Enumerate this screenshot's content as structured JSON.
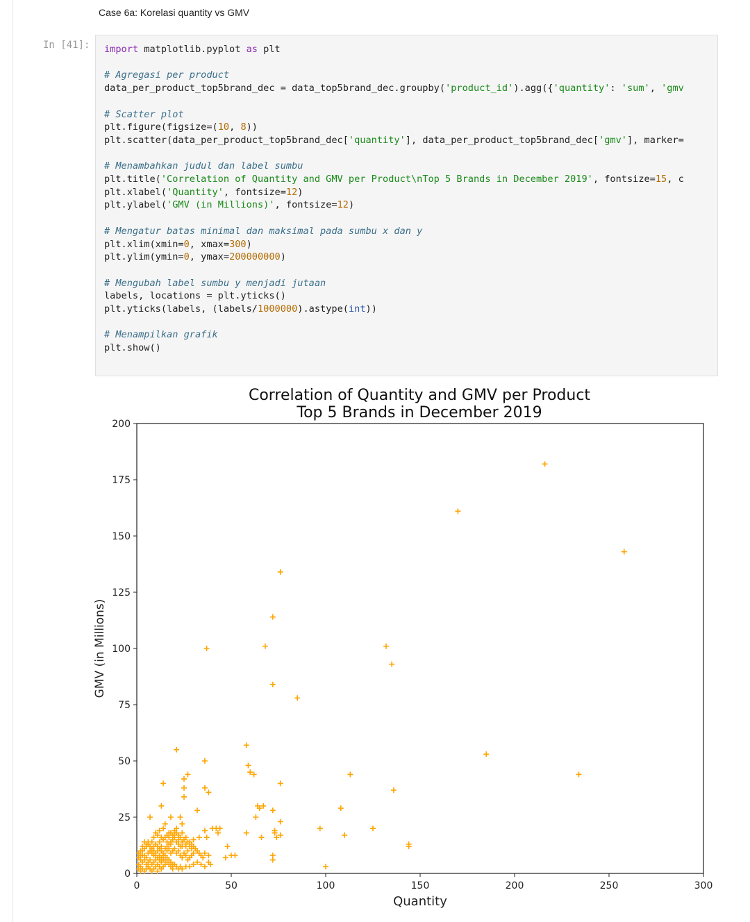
{
  "notebook": {
    "markdown_heading": "Case 6a: Korelasi quantity vs GMV",
    "cell_prompt": "In [41]:",
    "code_lines": [
      [
        [
          "kw",
          "import"
        ],
        [
          "t",
          " matplotlib.pyplot "
        ],
        [
          "kw",
          "as"
        ],
        [
          "t",
          " plt"
        ]
      ],
      [],
      [
        [
          "com",
          "# Agregasi per product"
        ]
      ],
      [
        [
          "t",
          "data_per_product_top5brand_dec = data_top5brand_dec.groupby("
        ],
        [
          "str",
          "'product_id'"
        ],
        [
          "t",
          ").agg({"
        ],
        [
          "str",
          "'quantity'"
        ],
        [
          "t",
          ": "
        ],
        [
          "str",
          "'sum'"
        ],
        [
          "t",
          ", "
        ],
        [
          "str",
          "'gmv"
        ]
      ],
      [],
      [
        [
          "com",
          "# Scatter plot"
        ]
      ],
      [
        [
          "t",
          "plt.figure(figsize=("
        ],
        [
          "num",
          "10"
        ],
        [
          "t",
          ", "
        ],
        [
          "num",
          "8"
        ],
        [
          "t",
          "))"
        ]
      ],
      [
        [
          "t",
          "plt.scatter(data_per_product_top5brand_dec["
        ],
        [
          "str",
          "'quantity'"
        ],
        [
          "t",
          "], data_per_product_top5brand_dec["
        ],
        [
          "str",
          "'gmv'"
        ],
        [
          "t",
          "], marker="
        ]
      ],
      [],
      [
        [
          "com",
          "# Menambahkan judul dan label sumbu"
        ]
      ],
      [
        [
          "t",
          "plt.title("
        ],
        [
          "str",
          "'Correlation of Quantity and GMV per Product\\nTop 5 Brands in December 2019'"
        ],
        [
          "t",
          ", fontsize="
        ],
        [
          "num",
          "15"
        ],
        [
          "t",
          ", c"
        ]
      ],
      [
        [
          "t",
          "plt.xlabel("
        ],
        [
          "str",
          "'Quantity'"
        ],
        [
          "t",
          ", fontsize="
        ],
        [
          "num",
          "12"
        ],
        [
          "t",
          ")"
        ]
      ],
      [
        [
          "t",
          "plt.ylabel("
        ],
        [
          "str",
          "'GMV (in Millions)'"
        ],
        [
          "t",
          ", fontsize="
        ],
        [
          "num",
          "12"
        ],
        [
          "t",
          ")"
        ]
      ],
      [],
      [
        [
          "com",
          "# Mengatur batas minimal dan maksimal pada sumbu x dan y"
        ]
      ],
      [
        [
          "t",
          "plt.xlim(xmin="
        ],
        [
          "num",
          "0"
        ],
        [
          "t",
          ", xmax="
        ],
        [
          "num",
          "300"
        ],
        [
          "t",
          ")"
        ]
      ],
      [
        [
          "t",
          "plt.ylim(ymin="
        ],
        [
          "num",
          "0"
        ],
        [
          "t",
          ", ymax="
        ],
        [
          "num",
          "200000000"
        ],
        [
          "t",
          ")"
        ]
      ],
      [],
      [
        [
          "com",
          "# Mengubah label sumbu y menjadi jutaan"
        ]
      ],
      [
        [
          "t",
          "labels, locations = plt.yticks()"
        ]
      ],
      [
        [
          "t",
          "plt.yticks(labels, (labels/"
        ],
        [
          "num",
          "1000000"
        ],
        [
          "t",
          ")."
        ],
        [
          "t",
          "astype("
        ],
        [
          "fn",
          "int"
        ],
        [
          "t",
          "))"
        ]
      ],
      [],
      [
        [
          "com",
          "# Menampilkan grafik"
        ]
      ],
      [
        [
          "t",
          "plt.show()"
        ]
      ]
    ]
  },
  "chart_data": {
    "type": "scatter",
    "title": "Correlation of Quantity and GMV per Product",
    "subtitle": "Top 5 Brands in December 2019",
    "xlabel": "Quantity",
    "ylabel": "GMV (in Millions)",
    "xlim": [
      0,
      300
    ],
    "ylim": [
      0,
      200
    ],
    "xticks": [
      0,
      50,
      100,
      150,
      200,
      250,
      300
    ],
    "yticks": [
      0,
      25,
      50,
      75,
      100,
      125,
      150,
      175,
      200
    ],
    "marker": "+",
    "color": "#FFA500",
    "grid": false,
    "series": [
      {
        "points": [
          [
            216,
            182
          ],
          [
            170,
            161
          ],
          [
            258,
            143
          ],
          [
            76,
            134
          ],
          [
            72,
            114
          ],
          [
            37,
            100
          ],
          [
            68,
            101
          ],
          [
            132,
            101
          ],
          [
            135,
            93
          ],
          [
            72,
            84
          ],
          [
            85,
            78
          ],
          [
            21,
            55
          ],
          [
            58,
            57
          ],
          [
            36,
            50
          ],
          [
            185,
            53
          ],
          [
            59,
            48
          ],
          [
            60,
            45
          ],
          [
            62,
            44
          ],
          [
            113,
            44
          ],
          [
            234,
            44
          ],
          [
            14,
            40
          ],
          [
            25,
            42
          ],
          [
            27,
            44
          ],
          [
            36,
            38
          ],
          [
            38,
            36
          ],
          [
            25,
            38
          ],
          [
            25,
            34
          ],
          [
            76,
            40
          ],
          [
            136,
            37
          ],
          [
            13,
            30
          ],
          [
            32,
            28
          ],
          [
            65,
            29
          ],
          [
            67,
            30
          ],
          [
            64,
            30
          ],
          [
            72,
            28
          ],
          [
            108,
            29
          ],
          [
            7,
            25
          ],
          [
            18,
            25
          ],
          [
            23,
            25
          ],
          [
            63,
            25
          ],
          [
            76,
            23
          ],
          [
            24,
            22
          ],
          [
            21,
            20
          ],
          [
            20,
            18
          ],
          [
            17,
            18
          ],
          [
            15,
            22
          ],
          [
            14,
            20
          ],
          [
            12,
            19
          ],
          [
            10,
            18
          ],
          [
            9,
            16
          ],
          [
            11,
            17
          ],
          [
            13,
            16
          ],
          [
            16,
            14
          ],
          [
            18,
            13
          ],
          [
            22,
            15
          ],
          [
            26,
            12
          ],
          [
            28,
            14
          ],
          [
            30,
            15
          ],
          [
            33,
            16
          ],
          [
            36,
            19
          ],
          [
            37,
            16
          ],
          [
            42,
            20
          ],
          [
            44,
            20
          ],
          [
            40,
            20
          ],
          [
            43,
            18
          ],
          [
            58,
            18
          ],
          [
            66,
            16
          ],
          [
            73,
            19
          ],
          [
            76,
            17
          ],
          [
            97,
            20
          ],
          [
            110,
            17
          ],
          [
            125,
            20
          ],
          [
            144,
            12
          ],
          [
            144,
            13
          ],
          [
            74,
            16
          ],
          [
            73,
            18
          ],
          [
            8,
            14
          ],
          [
            6,
            13
          ],
          [
            5,
            12
          ],
          [
            4,
            11
          ],
          [
            3,
            10
          ],
          [
            4,
            8
          ],
          [
            2,
            6
          ],
          [
            3,
            5
          ],
          [
            5,
            7
          ],
          [
            6,
            9
          ],
          [
            7,
            10
          ],
          [
            8,
            11
          ],
          [
            9,
            12
          ],
          [
            10,
            13
          ],
          [
            11,
            12
          ],
          [
            12,
            11
          ],
          [
            13,
            10
          ],
          [
            14,
            9
          ],
          [
            15,
            8
          ],
          [
            16,
            7
          ],
          [
            17,
            6
          ],
          [
            18,
            5
          ],
          [
            19,
            4
          ],
          [
            20,
            4
          ],
          [
            21,
            3
          ],
          [
            22,
            2
          ],
          [
            23,
            3
          ],
          [
            24,
            2
          ],
          [
            26,
            3
          ],
          [
            28,
            3
          ],
          [
            30,
            4
          ],
          [
            32,
            5
          ],
          [
            34,
            4
          ],
          [
            36,
            3
          ],
          [
            38,
            5
          ],
          [
            39,
            4
          ],
          [
            9,
            8
          ],
          [
            10,
            6
          ],
          [
            11,
            4
          ],
          [
            12,
            3
          ],
          [
            13,
            2
          ],
          [
            14,
            3
          ],
          [
            15,
            4
          ],
          [
            16,
            5
          ],
          [
            17,
            4
          ],
          [
            18,
            3
          ],
          [
            19,
            2
          ],
          [
            2,
            3
          ],
          [
            3,
            2
          ],
          [
            4,
            1
          ],
          [
            5,
            2
          ],
          [
            6,
            3
          ],
          [
            7,
            2
          ],
          [
            8,
            1
          ],
          [
            9,
            2
          ],
          [
            10,
            3
          ],
          [
            11,
            1
          ],
          [
            1,
            2
          ],
          [
            2,
            1
          ],
          [
            1,
            4
          ],
          [
            2,
            8
          ],
          [
            3,
            12
          ],
          [
            4,
            14
          ],
          [
            5,
            13
          ],
          [
            6,
            14
          ],
          [
            7,
            12
          ],
          [
            8,
            9
          ],
          [
            9,
            10
          ],
          [
            10,
            9
          ],
          [
            11,
            10
          ],
          [
            12,
            8
          ],
          [
            13,
            7
          ],
          [
            14,
            8
          ],
          [
            15,
            6
          ],
          [
            16,
            10
          ],
          [
            17,
            11
          ],
          [
            18,
            9
          ],
          [
            19,
            10
          ],
          [
            20,
            11
          ],
          [
            21,
            9
          ],
          [
            22,
            10
          ],
          [
            23,
            8
          ],
          [
            24,
            7
          ],
          [
            25,
            9
          ],
          [
            26,
            8
          ],
          [
            27,
            6
          ],
          [
            28,
            7
          ],
          [
            29,
            8
          ],
          [
            30,
            9
          ],
          [
            31,
            11
          ],
          [
            24,
            12
          ],
          [
            26,
            13
          ],
          [
            27,
            10
          ],
          [
            29,
            11
          ],
          [
            30,
            12
          ],
          [
            32,
            10
          ],
          [
            33,
            9
          ],
          [
            34,
            8
          ],
          [
            35,
            7
          ],
          [
            36,
            9
          ],
          [
            48,
            12
          ],
          [
            50,
            8
          ],
          [
            52,
            8
          ],
          [
            47,
            7
          ],
          [
            72,
            8
          ],
          [
            72,
            6
          ],
          [
            100,
            3
          ],
          [
            38,
            8
          ],
          [
            1,
            7
          ],
          [
            1,
            9
          ],
          [
            2,
            10
          ],
          [
            3,
            8
          ],
          [
            4,
            6
          ],
          [
            5,
            4
          ],
          [
            6,
            5
          ],
          [
            7,
            6
          ],
          [
            8,
            4
          ],
          [
            9,
            5
          ],
          [
            10,
            8
          ],
          [
            11,
            7
          ],
          [
            12,
            6
          ],
          [
            13,
            5
          ],
          [
            14,
            6
          ],
          [
            15,
            11
          ],
          [
            16,
            12
          ],
          [
            17,
            13
          ],
          [
            18,
            14
          ],
          [
            19,
            15
          ],
          [
            20,
            16
          ],
          [
            21,
            14
          ],
          [
            22,
            13
          ],
          [
            23,
            12
          ],
          [
            24,
            14
          ],
          [
            25,
            15
          ],
          [
            26,
            16
          ],
          [
            27,
            14
          ],
          [
            28,
            12
          ],
          [
            29,
            13
          ],
          [
            12,
            14
          ],
          [
            13,
            12
          ],
          [
            14,
            15
          ],
          [
            15,
            16
          ],
          [
            16,
            17
          ],
          [
            17,
            16
          ],
          [
            18,
            18
          ],
          [
            19,
            17
          ],
          [
            20,
            19
          ],
          [
            21,
            18
          ],
          [
            22,
            17
          ],
          [
            23,
            16
          ],
          [
            24,
            18
          ]
        ]
      }
    ]
  }
}
